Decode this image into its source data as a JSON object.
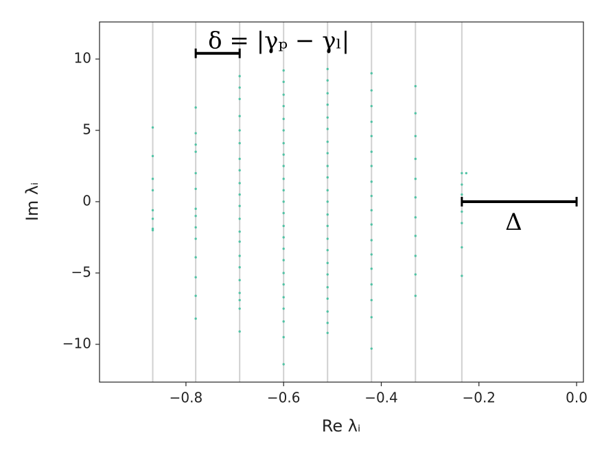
{
  "chart_data": {
    "type": "scatter",
    "xlabel": "Re λᵢ",
    "ylabel": "Im λᵢ",
    "color": "#52c3a5",
    "xlim": [
      -0.977,
      0.014
    ],
    "ylim": [
      -12.65,
      12.6
    ],
    "xticks": [
      {
        "value": -0.8,
        "label": "−0.8"
      },
      {
        "value": -0.6,
        "label": "−0.6"
      },
      {
        "value": -0.4,
        "label": "−0.4"
      },
      {
        "value": -0.2,
        "label": "−0.2"
      },
      {
        "value": 0.0,
        "label": "0.0"
      }
    ],
    "yticks": [
      {
        "value": -10,
        "label": "−10"
      },
      {
        "value": -5,
        "label": "−5"
      },
      0,
      5,
      10
    ],
    "vlines": [
      -0.868,
      -0.78,
      -0.69,
      -0.6,
      -0.51,
      -0.42,
      -0.33,
      -0.235
    ],
    "annotations": [
      {
        "text": "δ = |γₚ − γₗ|",
        "x": [
          -0.78,
          -0.69
        ],
        "y": 10.4
      },
      {
        "text": "Δ",
        "x": [
          -0.235,
          0.0
        ],
        "y": 0
      }
    ],
    "x": [
      -0.868,
      -0.868,
      -0.868,
      -0.868,
      -0.868,
      -0.868,
      -0.868,
      -0.868,
      -0.78,
      -0.78,
      -0.78,
      -0.78,
      -0.78,
      -0.78,
      -0.78,
      -0.78,
      -0.78,
      -0.78,
      -0.78,
      -0.78,
      -0.78,
      -0.78,
      -0.69,
      -0.69,
      -0.69,
      -0.69,
      -0.69,
      -0.69,
      -0.69,
      -0.69,
      -0.69,
      -0.69,
      -0.69,
      -0.69,
      -0.69,
      -0.69,
      -0.69,
      -0.69,
      -0.69,
      -0.69,
      -0.69,
      -0.69,
      -0.69,
      -0.6,
      -0.6,
      -0.6,
      -0.6,
      -0.6,
      -0.6,
      -0.6,
      -0.6,
      -0.6,
      -0.6,
      -0.6,
      -0.6,
      -0.6,
      -0.6,
      -0.6,
      -0.6,
      -0.6,
      -0.6,
      -0.6,
      -0.6,
      -0.6,
      -0.6,
      -0.6,
      -0.6,
      -0.51,
      -0.51,
      -0.51,
      -0.51,
      -0.51,
      -0.51,
      -0.51,
      -0.51,
      -0.51,
      -0.51,
      -0.51,
      -0.51,
      -0.51,
      -0.51,
      -0.51,
      -0.51,
      -0.51,
      -0.51,
      -0.51,
      -0.51,
      -0.51,
      -0.51,
      -0.51,
      -0.42,
      -0.42,
      -0.42,
      -0.42,
      -0.42,
      -0.42,
      -0.42,
      -0.42,
      -0.42,
      -0.42,
      -0.42,
      -0.42,
      -0.42,
      -0.42,
      -0.42,
      -0.42,
      -0.42,
      -0.42,
      -0.33,
      -0.33,
      -0.33,
      -0.33,
      -0.33,
      -0.33,
      -0.33,
      -0.33,
      -0.33,
      -0.33,
      -0.33,
      -0.235,
      -0.235,
      -0.235,
      -0.235,
      -0.235,
      -0.235,
      -0.235,
      -0.226
    ],
    "values": [
      5.2,
      3.2,
      1.6,
      0.8,
      -0.6,
      -1.2,
      -1.9,
      -2.0,
      6.6,
      4.8,
      3.5,
      2.0,
      0.9,
      -0.5,
      -1.8,
      -2.6,
      -3.9,
      -5.3,
      -6.6,
      -8.2,
      4.0,
      -1.0,
      8.8,
      7.2,
      6.0,
      5.0,
      4.1,
      3.0,
      2.2,
      1.3,
      0.5,
      -0.3,
      -1.2,
      -2.1,
      -2.8,
      -3.8,
      -4.6,
      -5.5,
      -6.4,
      -7.5,
      -9.1,
      8.0,
      -6.9,
      9.2,
      8.4,
      7.5,
      6.7,
      5.8,
      5.0,
      4.1,
      3.3,
      2.5,
      1.6,
      0.8,
      0,
      -0.8,
      -1.7,
      -2.5,
      -3.3,
      -4.1,
      -5.0,
      -5.8,
      -6.7,
      -7.5,
      -8.4,
      -9.5,
      -11.4,
      9.3,
      8.5,
      7.6,
      6.8,
      5.9,
      5.1,
      4.2,
      3.4,
      2.5,
      1.7,
      0.8,
      0,
      -0.9,
      -1.7,
      -2.6,
      -3.4,
      -4.3,
      -5.1,
      -6.0,
      -6.8,
      -7.7,
      -8.5,
      -9.2,
      9.0,
      7.8,
      6.7,
      5.6,
      4.6,
      3.5,
      2.5,
      1.4,
      0.4,
      -0.6,
      -1.6,
      -2.7,
      -3.7,
      -4.7,
      -5.8,
      -6.9,
      -8.1,
      -10.3,
      8.1,
      6.2,
      4.6,
      3.0,
      1.6,
      0.3,
      -1.1,
      -2.4,
      -3.8,
      -5.1,
      -6.6,
      2.0,
      1.2,
      0.5,
      -0.7,
      -1.5,
      -3.2,
      -5.2,
      2.0
    ]
  }
}
